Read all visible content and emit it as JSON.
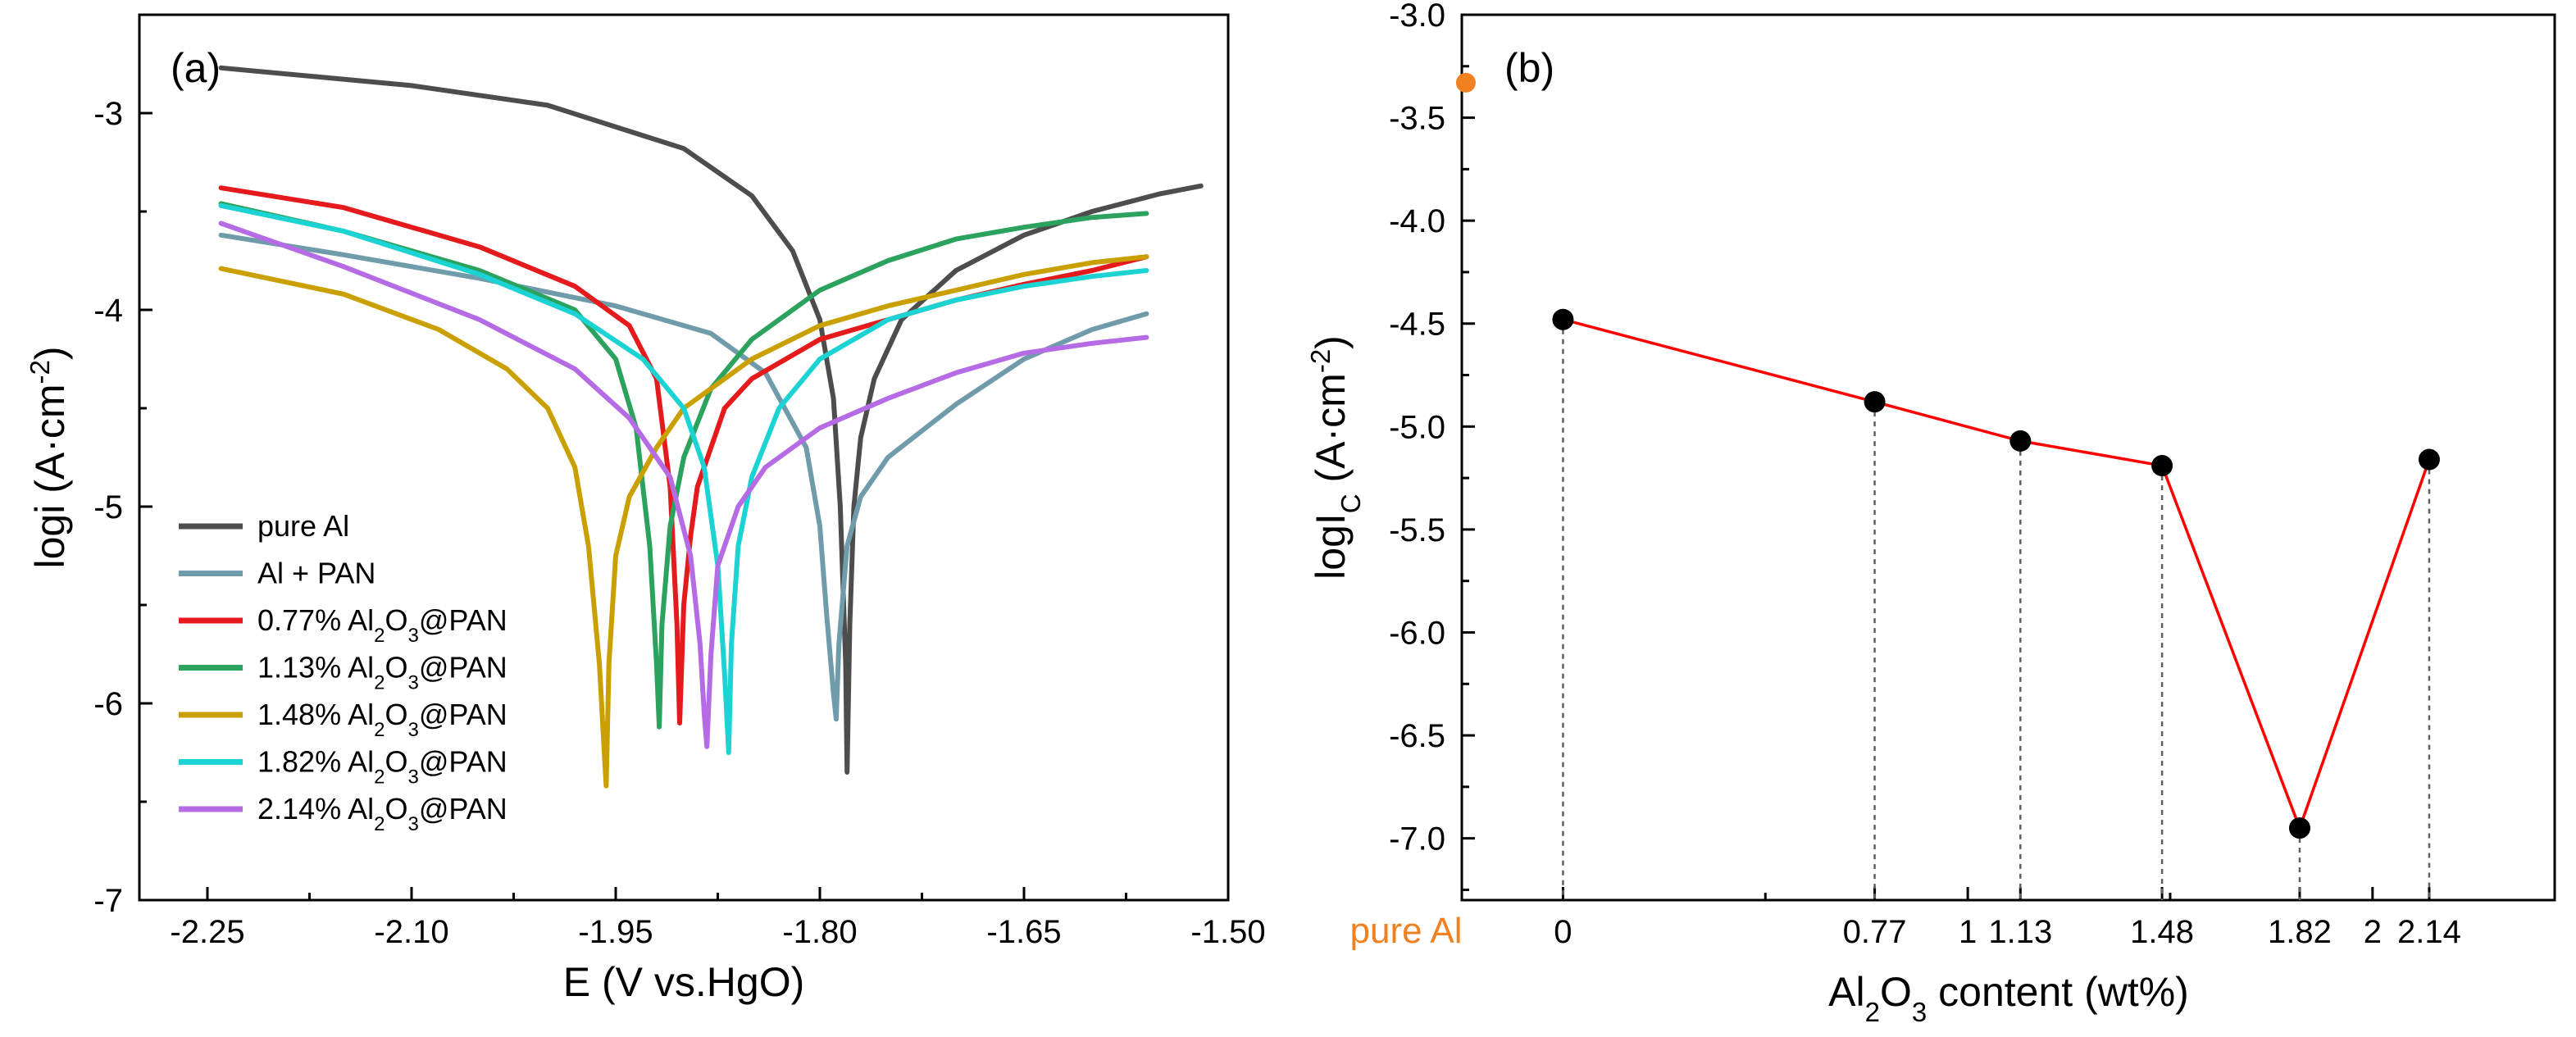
{
  "colors": {
    "pure_al_text": "#F08020",
    "line_b": "#FF0000",
    "axis": "#000000",
    "guide": "#606060"
  },
  "panel_a": {
    "label": "(a)",
    "xlabel": "E (V vs.HgO)",
    "ylabel": "logi (A·cm-2)",
    "ylabel_main": "logi (A·cm",
    "ylabel_sup": "-2",
    "ylabel_end": ")",
    "xticks": [
      "-2.25",
      "-2.10",
      "-1.95",
      "-1.80",
      "-1.65",
      "-1.50"
    ],
    "yticks": [
      "-3",
      "-4",
      "-5",
      "-6",
      "-7"
    ],
    "legend": [
      {
        "pre": "pure Al",
        "sub1": "",
        "mid": "",
        "sub2": "",
        "post": "",
        "color": "#4D4D4D"
      },
      {
        "pre": "Al + PAN",
        "sub1": "",
        "mid": "",
        "sub2": "",
        "post": "",
        "color": "#6F9BAB"
      },
      {
        "pre": "0.77% Al",
        "sub1": "2",
        "mid": "O",
        "sub2": "3",
        "post": "@PAN",
        "color": "#E41A1C"
      },
      {
        "pre": "1.13% Al",
        "sub1": "2",
        "mid": "O",
        "sub2": "3",
        "post": "@PAN",
        "color": "#2CA25F"
      },
      {
        "pre": "1.48% Al",
        "sub1": "2",
        "mid": "O",
        "sub2": "3",
        "post": "@PAN",
        "color": "#C9A000"
      },
      {
        "pre": "1.82% Al",
        "sub1": "2",
        "mid": "O",
        "sub2": "3",
        "post": "@PAN",
        "color": "#1CD3D3"
      },
      {
        "pre": "2.14% Al",
        "sub1": "2",
        "mid": "O",
        "sub2": "3",
        "post": "@PAN",
        "color": "#B56BE3"
      }
    ]
  },
  "panel_b": {
    "label": "(b)",
    "xlabel_pre": "Al",
    "xlabel_sub1": "2",
    "xlabel_mid": "O",
    "xlabel_sub2": "3",
    "xlabel_post": " content (wt%)",
    "ylabel_main": "logI",
    "ylabel_sub": "C",
    "ylabel_rest": " (A·cm",
    "ylabel_sup": "-2",
    "ylabel_end": ")",
    "pure_al_label": "pure Al",
    "xticks": [
      "0",
      "0.77",
      "1",
      "1.13",
      "1.48",
      "1.82",
      "2",
      "2.14"
    ],
    "yticks": [
      "-3.0",
      "-3.5",
      "-4.0",
      "-4.5",
      "-5.0",
      "-5.5",
      "-6.0",
      "-6.5",
      "-7.0"
    ]
  },
  "chart_data": [
    {
      "type": "line",
      "title": "",
      "xlabel": "E (V vs.HgO)",
      "ylabel": "logi (A·cm-2)",
      "xlim": [
        -2.3,
        -1.5
      ],
      "ylim": [
        -7,
        -2.5
      ],
      "legend_position": "bottom-left",
      "series": [
        {
          "name": "pure Al",
          "color": "#4D4D4D",
          "ecorr": -1.78,
          "icorr": -6.35,
          "x": [
            -2.24,
            -2.1,
            -2.0,
            -1.9,
            -1.85,
            -1.82,
            -1.8,
            -1.79,
            -1.785,
            -1.781,
            -1.78,
            -1.778,
            -1.775,
            -1.77,
            -1.76,
            -1.74,
            -1.7,
            -1.65,
            -1.6,
            -1.55,
            -1.52
          ],
          "y": [
            -2.77,
            -2.86,
            -2.96,
            -3.18,
            -3.42,
            -3.7,
            -4.05,
            -4.45,
            -5.0,
            -5.8,
            -6.35,
            -5.6,
            -5.0,
            -4.65,
            -4.35,
            -4.05,
            -3.8,
            -3.62,
            -3.5,
            -3.41,
            -3.37
          ]
        },
        {
          "name": "Al + PAN",
          "color": "#6F9BAB",
          "ecorr": -1.788,
          "icorr": -6.08,
          "x": [
            -2.24,
            -2.15,
            -2.05,
            -1.95,
            -1.88,
            -1.84,
            -1.81,
            -1.8,
            -1.795,
            -1.79,
            -1.788,
            -1.786,
            -1.78,
            -1.77,
            -1.75,
            -1.7,
            -1.65,
            -1.6,
            -1.56
          ],
          "y": [
            -3.62,
            -3.72,
            -3.84,
            -3.98,
            -4.12,
            -4.32,
            -4.7,
            -5.1,
            -5.55,
            -5.95,
            -6.08,
            -5.7,
            -5.2,
            -4.95,
            -4.75,
            -4.48,
            -4.25,
            -4.1,
            -4.02
          ]
        },
        {
          "name": "0.77% Al2O3@PAN",
          "color": "#E41A1C",
          "ecorr": -1.903,
          "icorr": -6.1,
          "x": [
            -2.24,
            -2.15,
            -2.05,
            -1.98,
            -1.94,
            -1.92,
            -1.91,
            -1.905,
            -1.903,
            -1.9,
            -1.895,
            -1.89,
            -1.87,
            -1.85,
            -1.8,
            -1.75,
            -1.7,
            -1.65,
            -1.6,
            -1.56
          ],
          "y": [
            -3.38,
            -3.48,
            -3.68,
            -3.88,
            -4.08,
            -4.35,
            -4.9,
            -5.6,
            -6.1,
            -5.5,
            -5.15,
            -4.9,
            -4.5,
            -4.35,
            -4.15,
            -4.05,
            -3.95,
            -3.87,
            -3.8,
            -3.73
          ]
        },
        {
          "name": "1.13% Al2O3@PAN",
          "color": "#2CA25F",
          "ecorr": -1.918,
          "icorr": -6.12,
          "x": [
            -2.24,
            -2.15,
            -2.05,
            -1.98,
            -1.95,
            -1.935,
            -1.925,
            -1.92,
            -1.918,
            -1.916,
            -1.91,
            -1.9,
            -1.88,
            -1.85,
            -1.8,
            -1.75,
            -1.7,
            -1.65,
            -1.6,
            -1.56
          ],
          "y": [
            -3.46,
            -3.6,
            -3.8,
            -4.0,
            -4.25,
            -4.6,
            -5.2,
            -5.8,
            -6.12,
            -5.6,
            -5.1,
            -4.75,
            -4.4,
            -4.15,
            -3.9,
            -3.75,
            -3.64,
            -3.58,
            -3.53,
            -3.51
          ]
        },
        {
          "name": "1.48% Al2O3@PAN",
          "color": "#C9A000",
          "ecorr": -1.957,
          "icorr": -6.42,
          "x": [
            -2.24,
            -2.15,
            -2.08,
            -2.03,
            -2.0,
            -1.98,
            -1.97,
            -1.962,
            -1.958,
            -1.957,
            -1.955,
            -1.95,
            -1.94,
            -1.92,
            -1.9,
            -1.85,
            -1.8,
            -1.75,
            -1.7,
            -1.65,
            -1.6,
            -1.56
          ],
          "y": [
            -3.79,
            -3.92,
            -4.1,
            -4.3,
            -4.5,
            -4.8,
            -5.2,
            -5.8,
            -6.3,
            -6.42,
            -5.8,
            -5.25,
            -4.95,
            -4.7,
            -4.5,
            -4.25,
            -4.08,
            -3.98,
            -3.9,
            -3.82,
            -3.76,
            -3.73
          ]
        },
        {
          "name": "1.82% Al2O3@PAN",
          "color": "#1CD3D3",
          "ecorr": -1.867,
          "icorr": -6.25,
          "x": [
            -2.24,
            -2.15,
            -2.05,
            -1.98,
            -1.93,
            -1.9,
            -1.885,
            -1.875,
            -1.87,
            -1.867,
            -1.865,
            -1.86,
            -1.85,
            -1.83,
            -1.8,
            -1.75,
            -1.7,
            -1.65,
            -1.6,
            -1.56
          ],
          "y": [
            -3.47,
            -3.6,
            -3.82,
            -4.02,
            -4.25,
            -4.5,
            -4.8,
            -5.3,
            -5.85,
            -6.25,
            -5.7,
            -5.2,
            -4.85,
            -4.5,
            -4.25,
            -4.05,
            -3.95,
            -3.88,
            -3.83,
            -3.8
          ]
        },
        {
          "name": "2.14% Al2O3@PAN",
          "color": "#B56BE3",
          "ecorr": -1.883,
          "icorr": -6.22,
          "x": [
            -2.24,
            -2.15,
            -2.05,
            -1.98,
            -1.94,
            -1.91,
            -1.895,
            -1.888,
            -1.885,
            -1.883,
            -1.88,
            -1.875,
            -1.86,
            -1.84,
            -1.8,
            -1.75,
            -1.7,
            -1.65,
            -1.6,
            -1.56
          ],
          "y": [
            -3.56,
            -3.78,
            -4.05,
            -4.3,
            -4.55,
            -4.85,
            -5.25,
            -5.7,
            -6.05,
            -6.22,
            -5.75,
            -5.3,
            -5.0,
            -4.8,
            -4.6,
            -4.45,
            -4.32,
            -4.22,
            -4.17,
            -4.14
          ]
        }
      ]
    },
    {
      "type": "line",
      "title": "",
      "xlabel": "Al2O3 content (wt%)",
      "ylabel": "logIC (A·cm-2)",
      "xlim": [
        -0.25,
        2.45
      ],
      "ylim": [
        -7.3,
        -3.0
      ],
      "categories": [
        "0",
        "0.77",
        "1.13",
        "1.48",
        "1.82",
        "2.14"
      ],
      "x": [
        0,
        0.77,
        1.13,
        1.48,
        1.82,
        2.14
      ],
      "series": [
        {
          "color": "#FF0000",
          "y": [
            -4.48,
            -4.88,
            -5.07,
            -5.19,
            -6.95,
            -5.16
          ]
        }
      ],
      "extra_point": {
        "label": "pure Al",
        "x": -0.24,
        "y": -3.33,
        "color": "#F08020"
      }
    }
  ]
}
